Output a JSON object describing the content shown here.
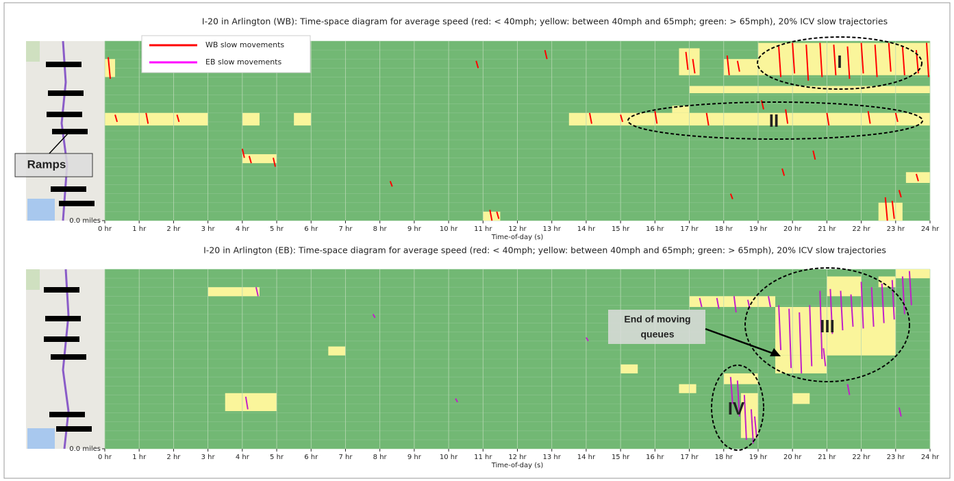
{
  "chart_data": [
    {
      "type": "heatmap",
      "title": "I-20 in Arlington (WB): Time-space diagram for average speed (red: < 40mph; yellow: between 40mph and 65mph; green: > 65mph), 20% ICV slow trajectories",
      "xlabel": "Time-of-day (s)",
      "background_color": "#72b874",
      "cell_color": "#faf59b",
      "grid": true,
      "xlim": [
        0,
        24
      ],
      "ylim": [
        0,
        10
      ],
      "xticks": [
        {
          "value": 0,
          "label": "0 hr"
        },
        {
          "value": 1,
          "label": "1 hr"
        },
        {
          "value": 2,
          "label": "2 hr"
        },
        {
          "value": 3,
          "label": "3 hr"
        },
        {
          "value": 4,
          "label": "4 hr"
        },
        {
          "value": 5,
          "label": "5 hr"
        },
        {
          "value": 6,
          "label": "6 hr"
        },
        {
          "value": 7,
          "label": "7 hr"
        },
        {
          "value": 8,
          "label": "8 hr"
        },
        {
          "value": 9,
          "label": "9 hr"
        },
        {
          "value": 10,
          "label": "10 hr"
        },
        {
          "value": 11,
          "label": "11 hr"
        },
        {
          "value": 12,
          "label": "12 hr"
        },
        {
          "value": 13,
          "label": "13 hr"
        },
        {
          "value": 14,
          "label": "14 hr"
        },
        {
          "value": 15,
          "label": "15 hr"
        },
        {
          "value": 16,
          "label": "16 hr"
        },
        {
          "value": 17,
          "label": "17 hr"
        },
        {
          "value": 18,
          "label": "18 hr"
        },
        {
          "value": 19,
          "label": "19 hr"
        },
        {
          "value": 20,
          "label": "20 hr"
        },
        {
          "value": 21,
          "label": "21 hr"
        },
        {
          "value": 22,
          "label": "22 hr"
        },
        {
          "value": 23,
          "label": "23 hr"
        },
        {
          "value": 24,
          "label": "24 hr"
        }
      ],
      "yticks": [
        {
          "value": 0,
          "label": "0.0 miles"
        }
      ],
      "legend": "upper left",
      "cells": [
        {
          "x": [
            0,
            3
          ],
          "y": [
            5.3,
            6.0
          ]
        },
        {
          "x": [
            4,
            4.5
          ],
          "y": [
            5.3,
            6.0
          ]
        },
        {
          "x": [
            5.5,
            6
          ],
          "y": [
            5.3,
            6.0
          ]
        },
        {
          "x": [
            13.5,
            24
          ],
          "y": [
            5.3,
            6.0
          ]
        },
        {
          "x": [
            0,
            0.3
          ],
          "y": [
            8.0,
            9.0
          ]
        },
        {
          "x": [
            4,
            5
          ],
          "y": [
            3.2,
            3.7
          ]
        },
        {
          "x": [
            11,
            11.5
          ],
          "y": [
            0,
            0.5
          ]
        },
        {
          "x": [
            16.7,
            17.3
          ],
          "y": [
            8.1,
            9.6
          ]
        },
        {
          "x": [
            18,
            19
          ],
          "y": [
            8.1,
            9.0
          ]
        },
        {
          "x": [
            19,
            24
          ],
          "y": [
            8.1,
            9.9
          ]
        },
        {
          "x": [
            19,
            24
          ],
          "y": [
            7.1,
            7.5
          ]
        },
        {
          "x": [
            17,
            19.8
          ],
          "y": [
            7.1,
            7.5
          ]
        },
        {
          "x": [
            16.5,
            17
          ],
          "y": [
            6.0,
            6.4
          ]
        },
        {
          "x": [
            22.5,
            23.2
          ],
          "y": [
            0,
            1.0
          ]
        },
        {
          "x": [
            23.3,
            24
          ],
          "y": [
            2.1,
            2.7
          ]
        }
      ],
      "series": [
        {
          "name": "WB slow movements",
          "color": "#ff0000",
          "x": [
            0.1,
            0.3,
            1.2,
            2.1,
            4.0,
            4.2,
            4.9,
            8.3,
            10.8,
            11.2,
            11.4,
            12.8,
            14.1,
            15.0,
            16.9,
            17.1,
            18.1,
            18.4,
            19.1,
            19.6,
            20.0,
            20.4,
            20.8,
            21.2,
            21.6,
            22.0,
            22.4,
            22.8,
            23.2,
            23.6,
            23.9,
            16.0,
            17.5,
            19.8,
            21.0,
            22.2,
            23.0,
            20.6,
            22.7,
            22.9,
            23.1,
            23.6,
            19.7,
            18.2
          ],
          "values": [
            [
              7.9,
              9.1
            ],
            [
              5.5,
              5.9
            ],
            [
              5.4,
              6.0
            ],
            [
              5.5,
              5.9
            ],
            [
              3.5,
              4.0
            ],
            [
              3.2,
              3.6
            ],
            [
              3.0,
              3.5
            ],
            [
              1.9,
              2.2
            ],
            [
              8.5,
              8.9
            ],
            [
              0,
              0.6
            ],
            [
              0.1,
              0.5
            ],
            [
              9.0,
              9.5
            ],
            [
              5.4,
              6.0
            ],
            [
              5.5,
              5.9
            ],
            [
              8.4,
              9.4
            ],
            [
              8.2,
              9.0
            ],
            [
              8.1,
              9.2
            ],
            [
              8.3,
              8.9
            ],
            [
              6.2,
              6.7
            ],
            [
              8.0,
              9.7
            ],
            [
              8.2,
              9.9
            ],
            [
              7.8,
              9.8
            ],
            [
              8.0,
              9.9
            ],
            [
              8.1,
              9.8
            ],
            [
              7.9,
              9.7
            ],
            [
              8.2,
              9.9
            ],
            [
              8.0,
              9.8
            ],
            [
              8.3,
              9.9
            ],
            [
              8.1,
              9.7
            ],
            [
              8.2,
              9.5
            ],
            [
              8.0,
              9.9
            ],
            [
              5.4,
              6.1
            ],
            [
              5.3,
              6.0
            ],
            [
              5.4,
              6.2
            ],
            [
              5.3,
              6.0
            ],
            [
              5.4,
              6.1
            ],
            [
              5.5,
              6.0
            ],
            [
              3.4,
              3.9
            ],
            [
              0.0,
              1.3
            ],
            [
              0.1,
              1.1
            ],
            [
              1.3,
              1.7
            ],
            [
              2.2,
              2.6
            ],
            [
              2.5,
              2.9
            ],
            [
              1.2,
              1.5
            ]
          ]
        },
        {
          "name": "EB slow movements",
          "color": "#ff00ff",
          "x": [],
          "values": []
        }
      ],
      "annotations": [
        "I",
        "II",
        "Ramps"
      ]
    },
    {
      "type": "heatmap",
      "title": "I-20 in Arlington (EB): Time-space diagram for average speed (red: < 40mph; yellow: between 40mph and 65mph; green: > 65mph), 20% ICV slow trajectories",
      "xlabel": "Time-of-day (s)",
      "background_color": "#72b874",
      "cell_color": "#faf59b",
      "grid": true,
      "xlim": [
        0,
        24
      ],
      "ylim": [
        0,
        10
      ],
      "xticks": [
        {
          "value": 0,
          "label": "0 hr"
        },
        {
          "value": 1,
          "label": "1 hr"
        },
        {
          "value": 2,
          "label": "2 hr"
        },
        {
          "value": 3,
          "label": "3 hr"
        },
        {
          "value": 4,
          "label": "4 hr"
        },
        {
          "value": 5,
          "label": "5 hr"
        },
        {
          "value": 6,
          "label": "6 hr"
        },
        {
          "value": 7,
          "label": "7 hr"
        },
        {
          "value": 8,
          "label": "8 hr"
        },
        {
          "value": 9,
          "label": "9 hr"
        },
        {
          "value": 10,
          "label": "10 hr"
        },
        {
          "value": 11,
          "label": "11 hr"
        },
        {
          "value": 12,
          "label": "12 hr"
        },
        {
          "value": 13,
          "label": "13 hr"
        },
        {
          "value": 14,
          "label": "14 hr"
        },
        {
          "value": 15,
          "label": "15 hr"
        },
        {
          "value": 16,
          "label": "16 hr"
        },
        {
          "value": 17,
          "label": "17 hr"
        },
        {
          "value": 18,
          "label": "18 hr"
        },
        {
          "value": 19,
          "label": "19 hr"
        },
        {
          "value": 20,
          "label": "20 hr"
        },
        {
          "value": 21,
          "label": "21 hr"
        },
        {
          "value": 22,
          "label": "22 hr"
        },
        {
          "value": 23,
          "label": "23 hr"
        },
        {
          "value": 24,
          "label": "24 hr"
        }
      ],
      "yticks": [
        {
          "value": 0,
          "label": "0.0 miles"
        }
      ],
      "cells": [
        {
          "x": [
            3,
            4.5
          ],
          "y": [
            8.5,
            9.0
          ]
        },
        {
          "x": [
            6.5,
            7
          ],
          "y": [
            5.2,
            5.7
          ]
        },
        {
          "x": [
            3.5,
            5
          ],
          "y": [
            2.1,
            3.1
          ]
        },
        {
          "x": [
            15,
            15.5
          ],
          "y": [
            4.2,
            4.7
          ]
        },
        {
          "x": [
            16.7,
            17.2
          ],
          "y": [
            3.1,
            3.6
          ]
        },
        {
          "x": [
            17,
            19.5
          ],
          "y": [
            7.9,
            8.5
          ]
        },
        {
          "x": [
            18,
            19
          ],
          "y": [
            3.6,
            4.2
          ]
        },
        {
          "x": [
            18.5,
            19
          ],
          "y": [
            0.6,
            3.1
          ]
        },
        {
          "x": [
            19.5,
            23
          ],
          "y": [
            5.2,
            7.9
          ]
        },
        {
          "x": [
            21,
            22
          ],
          "y": [
            8.5,
            9.6
          ]
        },
        {
          "x": [
            22.5,
            23
          ],
          "y": [
            9.0,
            9.6
          ]
        },
        {
          "x": [
            23,
            24
          ],
          "y": [
            9.5,
            10
          ]
        },
        {
          "x": [
            19.5,
            21
          ],
          "y": [
            4.2,
            5.2
          ]
        },
        {
          "x": [
            20,
            20.5
          ],
          "y": [
            2.5,
            3.1
          ]
        }
      ],
      "series": [
        {
          "name": "EB slow movements",
          "color": "#c020c8",
          "x": [
            4.1,
            4.4,
            7.8,
            10.2,
            14.0,
            17.3,
            17.8,
            18.2,
            18.4,
            18.6,
            18.8,
            18.9,
            18.3,
            18.7,
            19.3,
            19.6,
            19.9,
            20.2,
            20.5,
            20.8,
            21.1,
            21.4,
            21.7,
            22.0,
            22.3,
            22.6,
            22.9,
            23.2,
            23.4,
            21.6,
            23.1,
            20.9
          ],
          "values": [
            [
              2.2,
              2.9
            ],
            [
              8.5,
              9.0
            ],
            [
              7.3,
              7.5
            ],
            [
              2.6,
              2.8
            ],
            [
              6.0,
              6.2
            ],
            [
              7.9,
              8.4
            ],
            [
              7.8,
              8.4
            ],
            [
              2.5,
              4.0
            ],
            [
              1.8,
              3.8
            ],
            [
              0.5,
              3.0
            ],
            [
              0.3,
              2.2
            ],
            [
              0.6,
              1.8
            ],
            [
              7.6,
              8.5
            ],
            [
              7.8,
              8.3
            ],
            [
              7.9,
              8.5
            ],
            [
              5.5,
              8.0
            ],
            [
              4.5,
              7.8
            ],
            [
              4.2,
              7.6
            ],
            [
              4.6,
              8.0
            ],
            [
              5.0,
              8.8
            ],
            [
              6.4,
              8.9
            ],
            [
              6.6,
              8.8
            ],
            [
              6.8,
              8.6
            ],
            [
              6.7,
              9.3
            ],
            [
              6.8,
              9.0
            ],
            [
              7.0,
              9.2
            ],
            [
              7.2,
              9.4
            ],
            [
              7.5,
              9.6
            ],
            [
              8.0,
              9.9
            ],
            [
              3.0,
              3.6
            ],
            [
              1.8,
              2.3
            ],
            [
              4.6,
              5.6
            ]
          ]
        }
      ],
      "annotations": [
        "III",
        "IV",
        "End of moving",
        "queues"
      ]
    }
  ]
}
